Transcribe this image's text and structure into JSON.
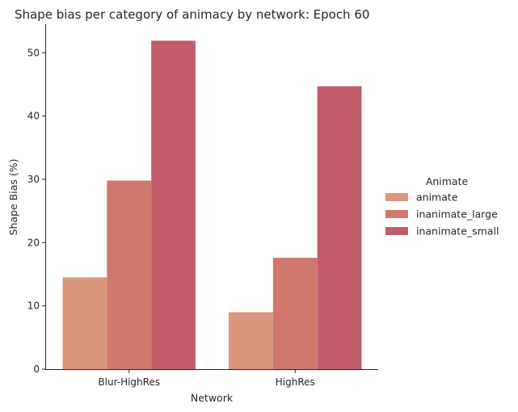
{
  "chart_data": {
    "type": "bar",
    "title": "Shape bias per category of animacy by network: Epoch 60",
    "xlabel": "Network",
    "ylabel": "Shape Bias (%)",
    "categories": [
      "Blur-HighRes",
      "HighRes"
    ],
    "series": [
      {
        "name": "animate",
        "values": [
          14.5,
          9.0
        ],
        "color": "#d9967a"
      },
      {
        "name": "inanimate_large",
        "values": [
          29.8,
          17.6
        ],
        "color": "#d0786c"
      },
      {
        "name": "inanimate_small",
        "values": [
          51.9,
          44.7
        ],
        "color": "#c25c6b"
      }
    ],
    "ylim": [
      0,
      54.5
    ],
    "yticks": [
      0,
      10,
      20,
      30,
      40,
      50
    ],
    "legend": {
      "title": "Animate",
      "placement": "right"
    },
    "grid": false
  }
}
